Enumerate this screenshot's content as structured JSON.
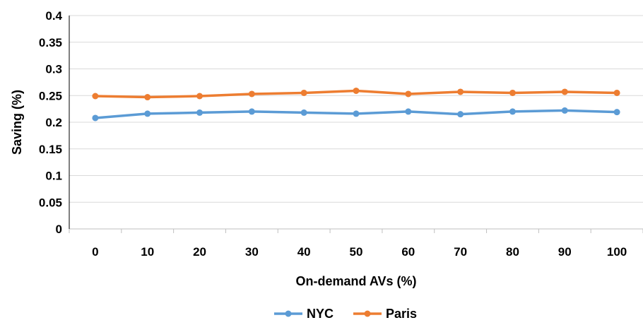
{
  "chart_data": {
    "type": "line",
    "title": "",
    "xlabel": "On-demand AVs (%)",
    "ylabel": "Saving (%)",
    "categories": [
      "0",
      "10",
      "20",
      "30",
      "40",
      "50",
      "60",
      "70",
      "80",
      "90",
      "100"
    ],
    "ylim": [
      0,
      0.4
    ],
    "yticks": [
      "0",
      "0.05",
      "0.1",
      "0.15",
      "0.2",
      "0.25",
      "0.3",
      "0.35",
      "0.4"
    ],
    "grid": true,
    "legend": "bottom",
    "series": [
      {
        "name": "NYC",
        "color": "#5B9BD5",
        "values": [
          0.208,
          0.216,
          0.218,
          0.22,
          0.218,
          0.216,
          0.22,
          0.215,
          0.22,
          0.222,
          0.219
        ]
      },
      {
        "name": "Paris",
        "color": "#ED7D31",
        "values": [
          0.249,
          0.247,
          0.249,
          0.253,
          0.255,
          0.259,
          0.253,
          0.257,
          0.255,
          0.257,
          0.255
        ]
      }
    ]
  }
}
